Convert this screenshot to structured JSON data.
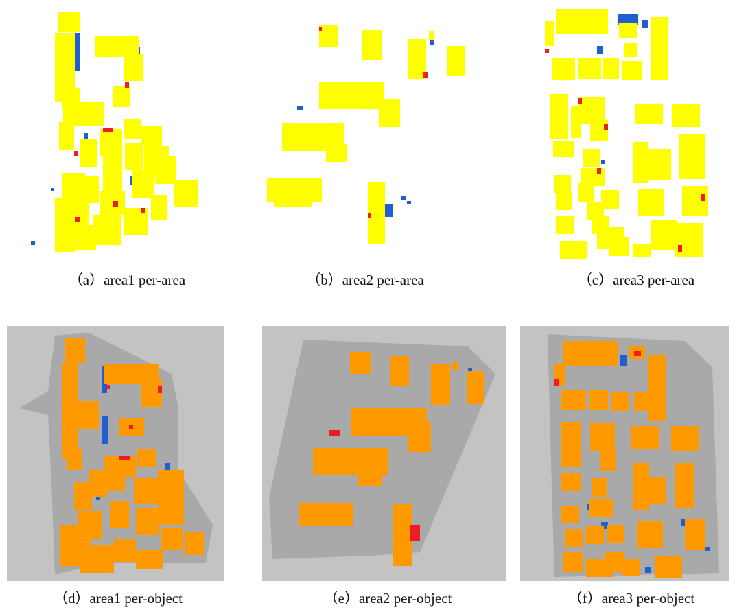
{
  "figure": {
    "panels": [
      {
        "id": "a",
        "caption": "（a）area1 per-area"
      },
      {
        "id": "b",
        "caption": "（b）area2 per-area"
      },
      {
        "id": "c",
        "caption": "（c）area3 per-area"
      },
      {
        "id": "d",
        "caption": "（d）area1 per-object"
      },
      {
        "id": "e",
        "caption": "（e）area2 per-object"
      },
      {
        "id": "f",
        "caption": "（f）area3 per-object"
      }
    ],
    "colors": {
      "true_positive_area": "#ffff00",
      "true_positive_object": "#ff9900",
      "false_positive": "#ee1c25",
      "false_negative": "#1f5fcf",
      "background_object_panel": "#c3c3c3",
      "area_mask": "#a9a9a9"
    }
  }
}
